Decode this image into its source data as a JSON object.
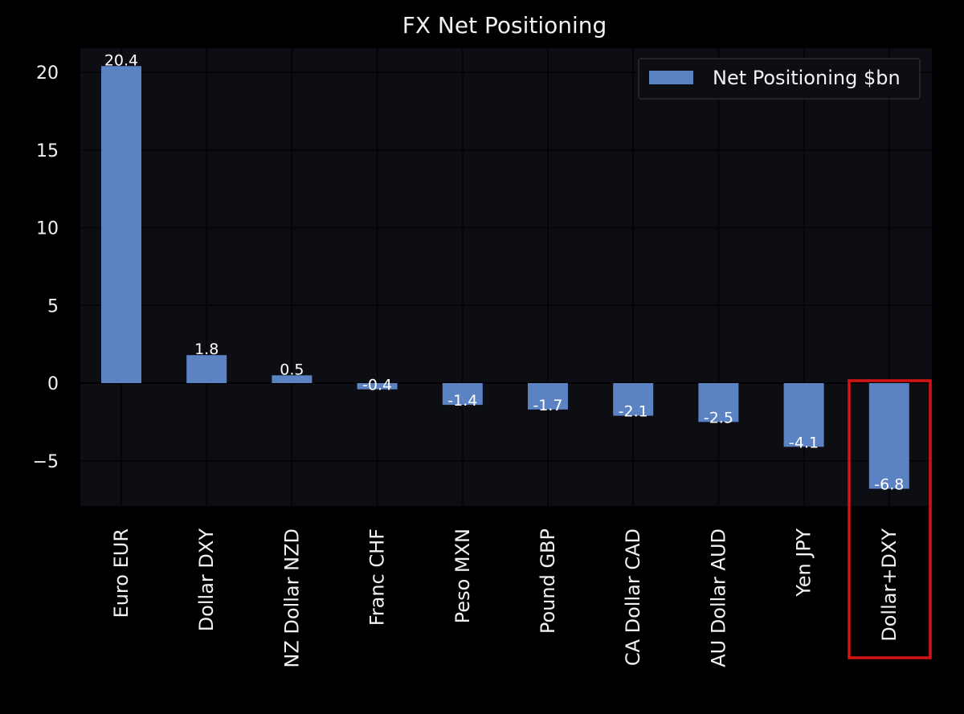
{
  "chart_data": {
    "type": "bar",
    "title": "FX Net Positioning",
    "xlabel": "",
    "ylabel": "",
    "categories": [
      "Euro EUR",
      "Dollar DXY",
      "NZ Dollar NZD",
      "Franc CHF",
      "Peso MXN",
      "Pound GBP",
      "CA Dollar CAD",
      "AU Dollar AUD",
      "Yen JPY",
      "Dollar+DXY"
    ],
    "series": [
      {
        "name": "Net Positioning $bn",
        "values": [
          20.4,
          1.8,
          0.5,
          -0.4,
          -1.4,
          -1.7,
          -2.1,
          -2.5,
          -4.1,
          -6.8
        ]
      }
    ],
    "data_labels": [
      "20.4",
      "1.8",
      "0.5",
      "-0.4",
      "-1.4",
      "-1.7",
      "-2.1",
      "-2.5",
      "-4.1",
      "-6.8"
    ],
    "ylim": [
      -8,
      22
    ],
    "yticks": [
      -5,
      0,
      5,
      10,
      15,
      20
    ],
    "ytick_labels": [
      "−5",
      "0",
      "5",
      "10",
      "15",
      "20"
    ],
    "grid": true,
    "legend_position": "top-right",
    "highlighted_category": "Dollar+DXY",
    "colors": {
      "background": "#000000",
      "plot_area": "#0d0e13",
      "bar": "#5b82c3",
      "grid": "#050507",
      "text": "#f2f2f2",
      "highlight_box": "#d41414"
    }
  }
}
